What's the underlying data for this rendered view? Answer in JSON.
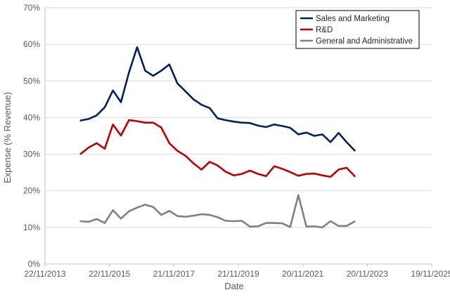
{
  "chart_data": {
    "type": "line",
    "xlabel": "Date",
    "ylabel": "Expense (% Revenue)",
    "x_ticks": [
      "22/11/2013",
      "22/11/2015",
      "21/11/2017",
      "21/11/2019",
      "20/11/2021",
      "20/11/2023",
      "19/11/2025"
    ],
    "y_ticks": [
      "0%",
      "10%",
      "20%",
      "30%",
      "40%",
      "50%",
      "60%",
      "70%"
    ],
    "xlim": [
      "2013-11-22",
      "2025-11-19"
    ],
    "ylim": [
      0,
      70
    ],
    "grid": {
      "horizontal": true,
      "vertical": false
    },
    "legend_position": "top-right",
    "x": [
      "2014-12-31",
      "2015-03-31",
      "2015-06-30",
      "2015-09-30",
      "2015-12-31",
      "2016-03-31",
      "2016-06-30",
      "2016-09-30",
      "2016-12-31",
      "2017-03-31",
      "2017-06-30",
      "2017-09-30",
      "2017-12-31",
      "2018-03-31",
      "2018-06-30",
      "2018-09-30",
      "2018-12-31",
      "2019-03-31",
      "2019-06-30",
      "2019-09-30",
      "2019-12-31",
      "2020-03-31",
      "2020-06-30",
      "2020-09-30",
      "2020-12-31",
      "2021-03-31",
      "2021-06-30",
      "2021-09-30",
      "2021-12-31",
      "2022-03-31",
      "2022-06-30",
      "2022-09-30",
      "2022-12-31",
      "2023-03-31",
      "2023-06-30",
      "2023-09-30",
      "2023-12-31"
    ],
    "series": [
      {
        "name": "Sales and Marketing",
        "color": "#002060",
        "values": [
          39.2,
          39.6,
          40.6,
          42.8,
          47.4,
          44.2,
          52.3,
          59.2,
          52.8,
          51.4,
          52.8,
          54.5,
          49.3,
          47.2,
          45.0,
          43.5,
          42.6,
          39.8,
          39.3,
          38.9,
          38.6,
          38.5,
          37.8,
          37.4,
          38.1,
          37.7,
          37.2,
          35.4,
          35.9,
          35.0,
          35.4,
          33.3,
          35.8,
          33.3,
          31.0,
          null,
          null
        ]
      },
      {
        "name": "R&D",
        "color": "#C00000",
        "values": [
          30.1,
          31.8,
          33.0,
          31.5,
          38.1,
          35.1,
          39.3,
          39.0,
          38.6,
          38.6,
          37.3,
          33.0,
          30.9,
          29.6,
          27.5,
          25.8,
          27.9,
          26.9,
          25.2,
          24.2,
          24.6,
          25.5,
          24.6,
          24.0,
          26.7,
          26.0,
          25.1,
          24.1,
          24.6,
          24.7,
          24.2,
          23.8,
          25.8,
          26.3,
          24.0,
          null,
          null
        ]
      },
      {
        "name": "General and Administrative",
        "color": "#808080",
        "values": [
          11.7,
          11.5,
          12.3,
          11.2,
          14.7,
          12.4,
          14.4,
          15.4,
          16.2,
          15.6,
          13.4,
          14.5,
          13.1,
          12.9,
          13.2,
          13.6,
          13.4,
          12.8,
          11.8,
          11.7,
          11.8,
          10.2,
          10.3,
          11.2,
          11.2,
          11.1,
          10.1,
          18.8,
          10.2,
          10.3,
          10.0,
          11.7,
          10.4,
          10.4,
          11.6,
          null,
          null
        ]
      }
    ]
  }
}
